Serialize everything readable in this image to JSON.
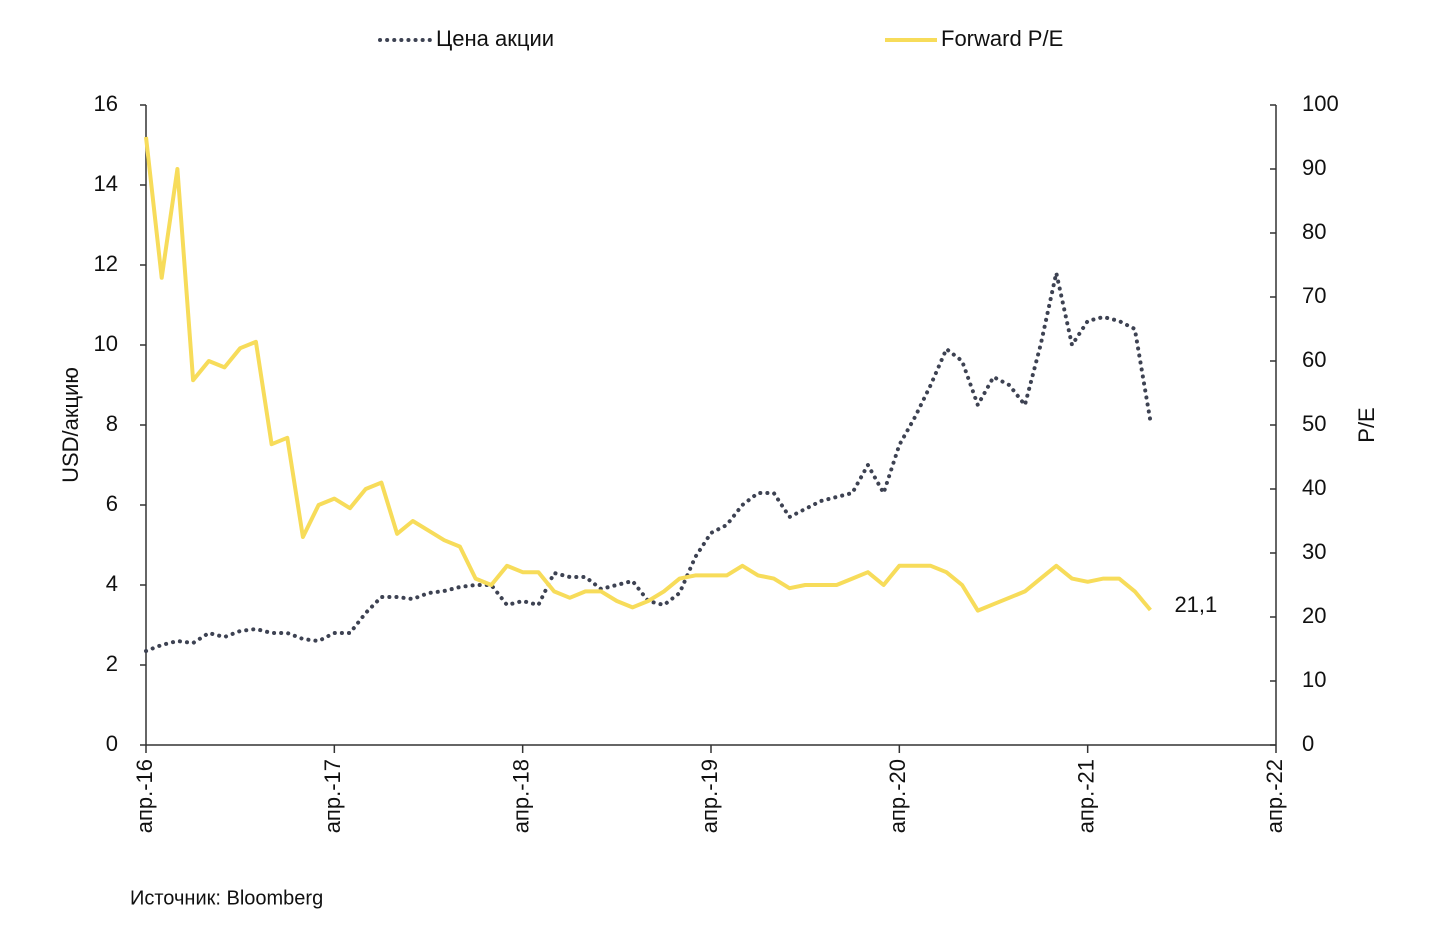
{
  "chart_data": {
    "type": "line",
    "source": "Источник: Bloomberg",
    "ylabel": "USD/акцию",
    "y2label": "P/E",
    "x": [
      "2016-04",
      "2016-05",
      "2016-06",
      "2016-07",
      "2016-08",
      "2016-09",
      "2016-10",
      "2016-11",
      "2016-12",
      "2017-01",
      "2017-02",
      "2017-03",
      "2017-04",
      "2017-05",
      "2017-06",
      "2017-07",
      "2017-08",
      "2017-09",
      "2017-10",
      "2017-11",
      "2017-12",
      "2018-01",
      "2018-02",
      "2018-03",
      "2018-04",
      "2018-05",
      "2018-06",
      "2018-07",
      "2018-08",
      "2018-09",
      "2018-10",
      "2018-11",
      "2018-12",
      "2019-01",
      "2019-02",
      "2019-03",
      "2019-04",
      "2019-05",
      "2019-06",
      "2019-07",
      "2019-08",
      "2019-09",
      "2019-10",
      "2019-11",
      "2019-12",
      "2020-01",
      "2020-02",
      "2020-03",
      "2020-04",
      "2020-05",
      "2020-06",
      "2020-07",
      "2020-08",
      "2020-09",
      "2020-10",
      "2020-11",
      "2020-12",
      "2021-01",
      "2021-02",
      "2021-03",
      "2021-04",
      "2021-05",
      "2021-06",
      "2021-07",
      "2021-08"
    ],
    "series": [
      {
        "name": "Цена акции",
        "color": "#3d4252",
        "style": "dotted",
        "values": [
          2.35,
          2.5,
          2.6,
          2.55,
          2.8,
          2.7,
          2.85,
          2.9,
          2.8,
          2.8,
          2.65,
          2.6,
          2.8,
          2.8,
          3.3,
          3.7,
          3.7,
          3.65,
          3.8,
          3.85,
          3.95,
          4.0,
          4.0,
          3.5,
          3.6,
          3.5,
          4.3,
          4.2,
          4.2,
          3.9,
          4.0,
          4.1,
          3.6,
          3.5,
          3.8,
          4.7,
          5.3,
          5.5,
          6.0,
          6.3,
          6.3,
          5.7,
          5.9,
          6.1,
          6.2,
          6.3,
          7.0,
          6.3,
          7.5,
          8.2,
          9.0,
          9.9,
          9.6,
          8.5,
          9.2,
          9.0,
          8.5,
          10.0,
          11.8,
          10.0,
          10.6,
          10.7,
          10.6,
          10.4,
          8.1
        ]
      },
      {
        "name": "Forward P/E",
        "color": "#f7dc5a",
        "style": "solid",
        "axis": "y2",
        "values": [
          95,
          73,
          90,
          57,
          60,
          59,
          62,
          63,
          47,
          48,
          32.5,
          37.5,
          38.5,
          37,
          40,
          41,
          33,
          35,
          33.5,
          32,
          31,
          26,
          25,
          28,
          27,
          27,
          24,
          23,
          24,
          24,
          22.5,
          21.5,
          22.5,
          24,
          26,
          26.5,
          26.5,
          26.5,
          28,
          26.5,
          26,
          24.5,
          25,
          25,
          25,
          26,
          27,
          25,
          28,
          28,
          28,
          27,
          25,
          21,
          22,
          23,
          24,
          26,
          28,
          26,
          25.5,
          26,
          26,
          24,
          21.1
        ],
        "value_labels": [
          null,
          null,
          null,
          null,
          null,
          null,
          null,
          null,
          null,
          null,
          null,
          null,
          null,
          null,
          null,
          null,
          null,
          null,
          null,
          null,
          null,
          null,
          null,
          null,
          null,
          null,
          null,
          null,
          null,
          null,
          null,
          null,
          null,
          null,
          null,
          null,
          null,
          null,
          null,
          null,
          null,
          null,
          null,
          null,
          null,
          null,
          null,
          null,
          null,
          null,
          null,
          null,
          null,
          null,
          null,
          null,
          null,
          null,
          null,
          null,
          null,
          null,
          null,
          null,
          "21,1"
        ]
      }
    ],
    "xlim": [
      "2016-04",
      "2022-04"
    ],
    "xticks": [
      {
        "value": "2016-04",
        "label": "апр.-16"
      },
      {
        "value": "2017-04",
        "label": "апр.-17"
      },
      {
        "value": "2018-04",
        "label": "апр.-18"
      },
      {
        "value": "2019-04",
        "label": "апр.-19"
      },
      {
        "value": "2020-04",
        "label": "апр.-20"
      },
      {
        "value": "2021-04",
        "label": "апр.-21"
      },
      {
        "value": "2022-04",
        "label": "апр.-22"
      }
    ],
    "ylim": [
      0,
      16
    ],
    "yticks": [
      0,
      2,
      4,
      6,
      8,
      10,
      12,
      14,
      16
    ],
    "y2lim": [
      0,
      100
    ],
    "y2ticks": [
      0,
      10,
      20,
      30,
      40,
      50,
      60,
      70,
      80,
      90,
      100
    ],
    "legend": "top"
  }
}
